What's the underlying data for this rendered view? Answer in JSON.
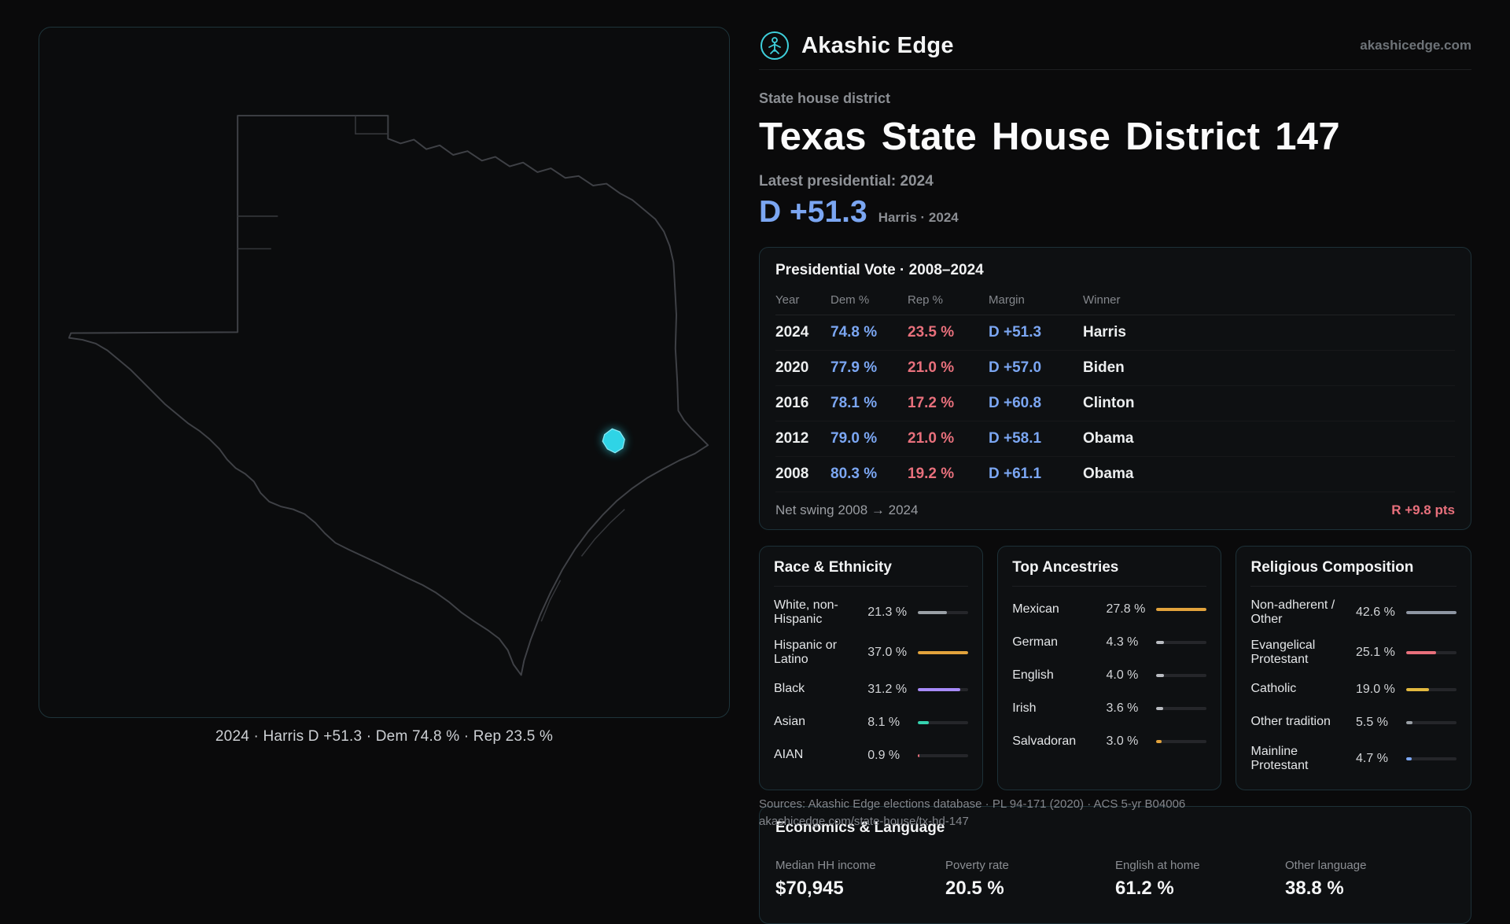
{
  "colors": {
    "brand_teal": "#3ecfdb",
    "dem_blue": "#7ba6f2",
    "rep_red": "#e8707c",
    "district_highlight": "#2fd4e6"
  },
  "header": {
    "brand": "Akashic Edge",
    "domain": "akashicedge.com"
  },
  "hero": {
    "eyebrow": "State house district",
    "title": "Texas State House District 147",
    "latest_label": "Latest presidential: 2024",
    "margin_value": "D +51.3",
    "margin_note": "Harris · 2024"
  },
  "map": {
    "caption": "2024 · Harris D +51.3 · Dem 74.8 % · Rep 23.5 %"
  },
  "presidential": {
    "title": "Presidential Vote · 2008–2024",
    "columns": [
      "Year",
      "Dem %",
      "Rep %",
      "Margin",
      "Winner"
    ],
    "rows": [
      {
        "year": "2024",
        "dem": "74.8 %",
        "rep": "23.5 %",
        "margin": "D +51.3",
        "winner": "Harris"
      },
      {
        "year": "2020",
        "dem": "77.9 %",
        "rep": "21.0 %",
        "margin": "D +57.0",
        "winner": "Biden"
      },
      {
        "year": "2016",
        "dem": "78.1 %",
        "rep": "17.2 %",
        "margin": "D +60.8",
        "winner": "Clinton"
      },
      {
        "year": "2012",
        "dem": "79.0 %",
        "rep": "21.0 %",
        "margin": "D +58.1",
        "winner": "Obama"
      },
      {
        "year": "2008",
        "dem": "80.3 %",
        "rep": "19.2 %",
        "margin": "D +61.1",
        "winner": "Obama"
      }
    ],
    "footer_label": "Net swing 2008 → 2024",
    "footer_value": "R +9.8 pts"
  },
  "race": {
    "title": "Race & Ethnicity",
    "max": 37.0,
    "items": [
      {
        "label": "White, non-Hispanic",
        "value": "21.3 %",
        "pct": 21.3,
        "color": "#9aa0a6"
      },
      {
        "label": "Hispanic or Latino",
        "value": "37.0 %",
        "pct": 37.0,
        "color": "#e2a33c"
      },
      {
        "label": "Black",
        "value": "31.2 %",
        "pct": 31.2,
        "color": "#a78bfa"
      },
      {
        "label": "Asian",
        "value": "8.1 %",
        "pct": 8.1,
        "color": "#35d3b0"
      },
      {
        "label": "AIAN",
        "value": "0.9 %",
        "pct": 0.9,
        "color": "#e8707c"
      }
    ]
  },
  "ancestries": {
    "title": "Top Ancestries",
    "max": 27.8,
    "items": [
      {
        "label": "Mexican",
        "value": "27.8 %",
        "pct": 27.8,
        "color": "#e2a33c"
      },
      {
        "label": "German",
        "value": "4.3 %",
        "pct": 4.3,
        "color": "#b9bcc1"
      },
      {
        "label": "English",
        "value": "4.0 %",
        "pct": 4.0,
        "color": "#b9bcc1"
      },
      {
        "label": "Irish",
        "value": "3.6 %",
        "pct": 3.6,
        "color": "#b9bcc1"
      },
      {
        "label": "Salvadoran",
        "value": "3.0 %",
        "pct": 3.0,
        "color": "#e2a33c"
      }
    ]
  },
  "religion": {
    "title": "Religious Composition",
    "max": 42.6,
    "items": [
      {
        "label": "Non-adherent / Other",
        "value": "42.6 %",
        "pct": 42.6,
        "color": "#8e96a3"
      },
      {
        "label": "Evangelical Protestant",
        "value": "25.1 %",
        "pct": 25.1,
        "color": "#e8707c"
      },
      {
        "label": "Catholic",
        "value": "19.0 %",
        "pct": 19.0,
        "color": "#e3b93f"
      },
      {
        "label": "Other tradition",
        "value": "5.5 %",
        "pct": 5.5,
        "color": "#9aa0a6"
      },
      {
        "label": "Mainline Protestant",
        "value": "4.7 %",
        "pct": 4.7,
        "color": "#7ba6f2"
      }
    ]
  },
  "economics": {
    "title": "Economics & Language",
    "stats": [
      {
        "label": "Median HH income",
        "value": "$70,945"
      },
      {
        "label": "Poverty rate",
        "value": "20.5 %"
      },
      {
        "label": "English at home",
        "value": "61.2 %"
      },
      {
        "label": "Other language",
        "value": "38.8 %"
      }
    ]
  },
  "sources": {
    "line1": "Sources: Akashic Edge elections database · PL 94-171 (2020) · ACS 5-yr B04006",
    "line2": "akashicedge.com/state-house/tx-hd-147"
  }
}
